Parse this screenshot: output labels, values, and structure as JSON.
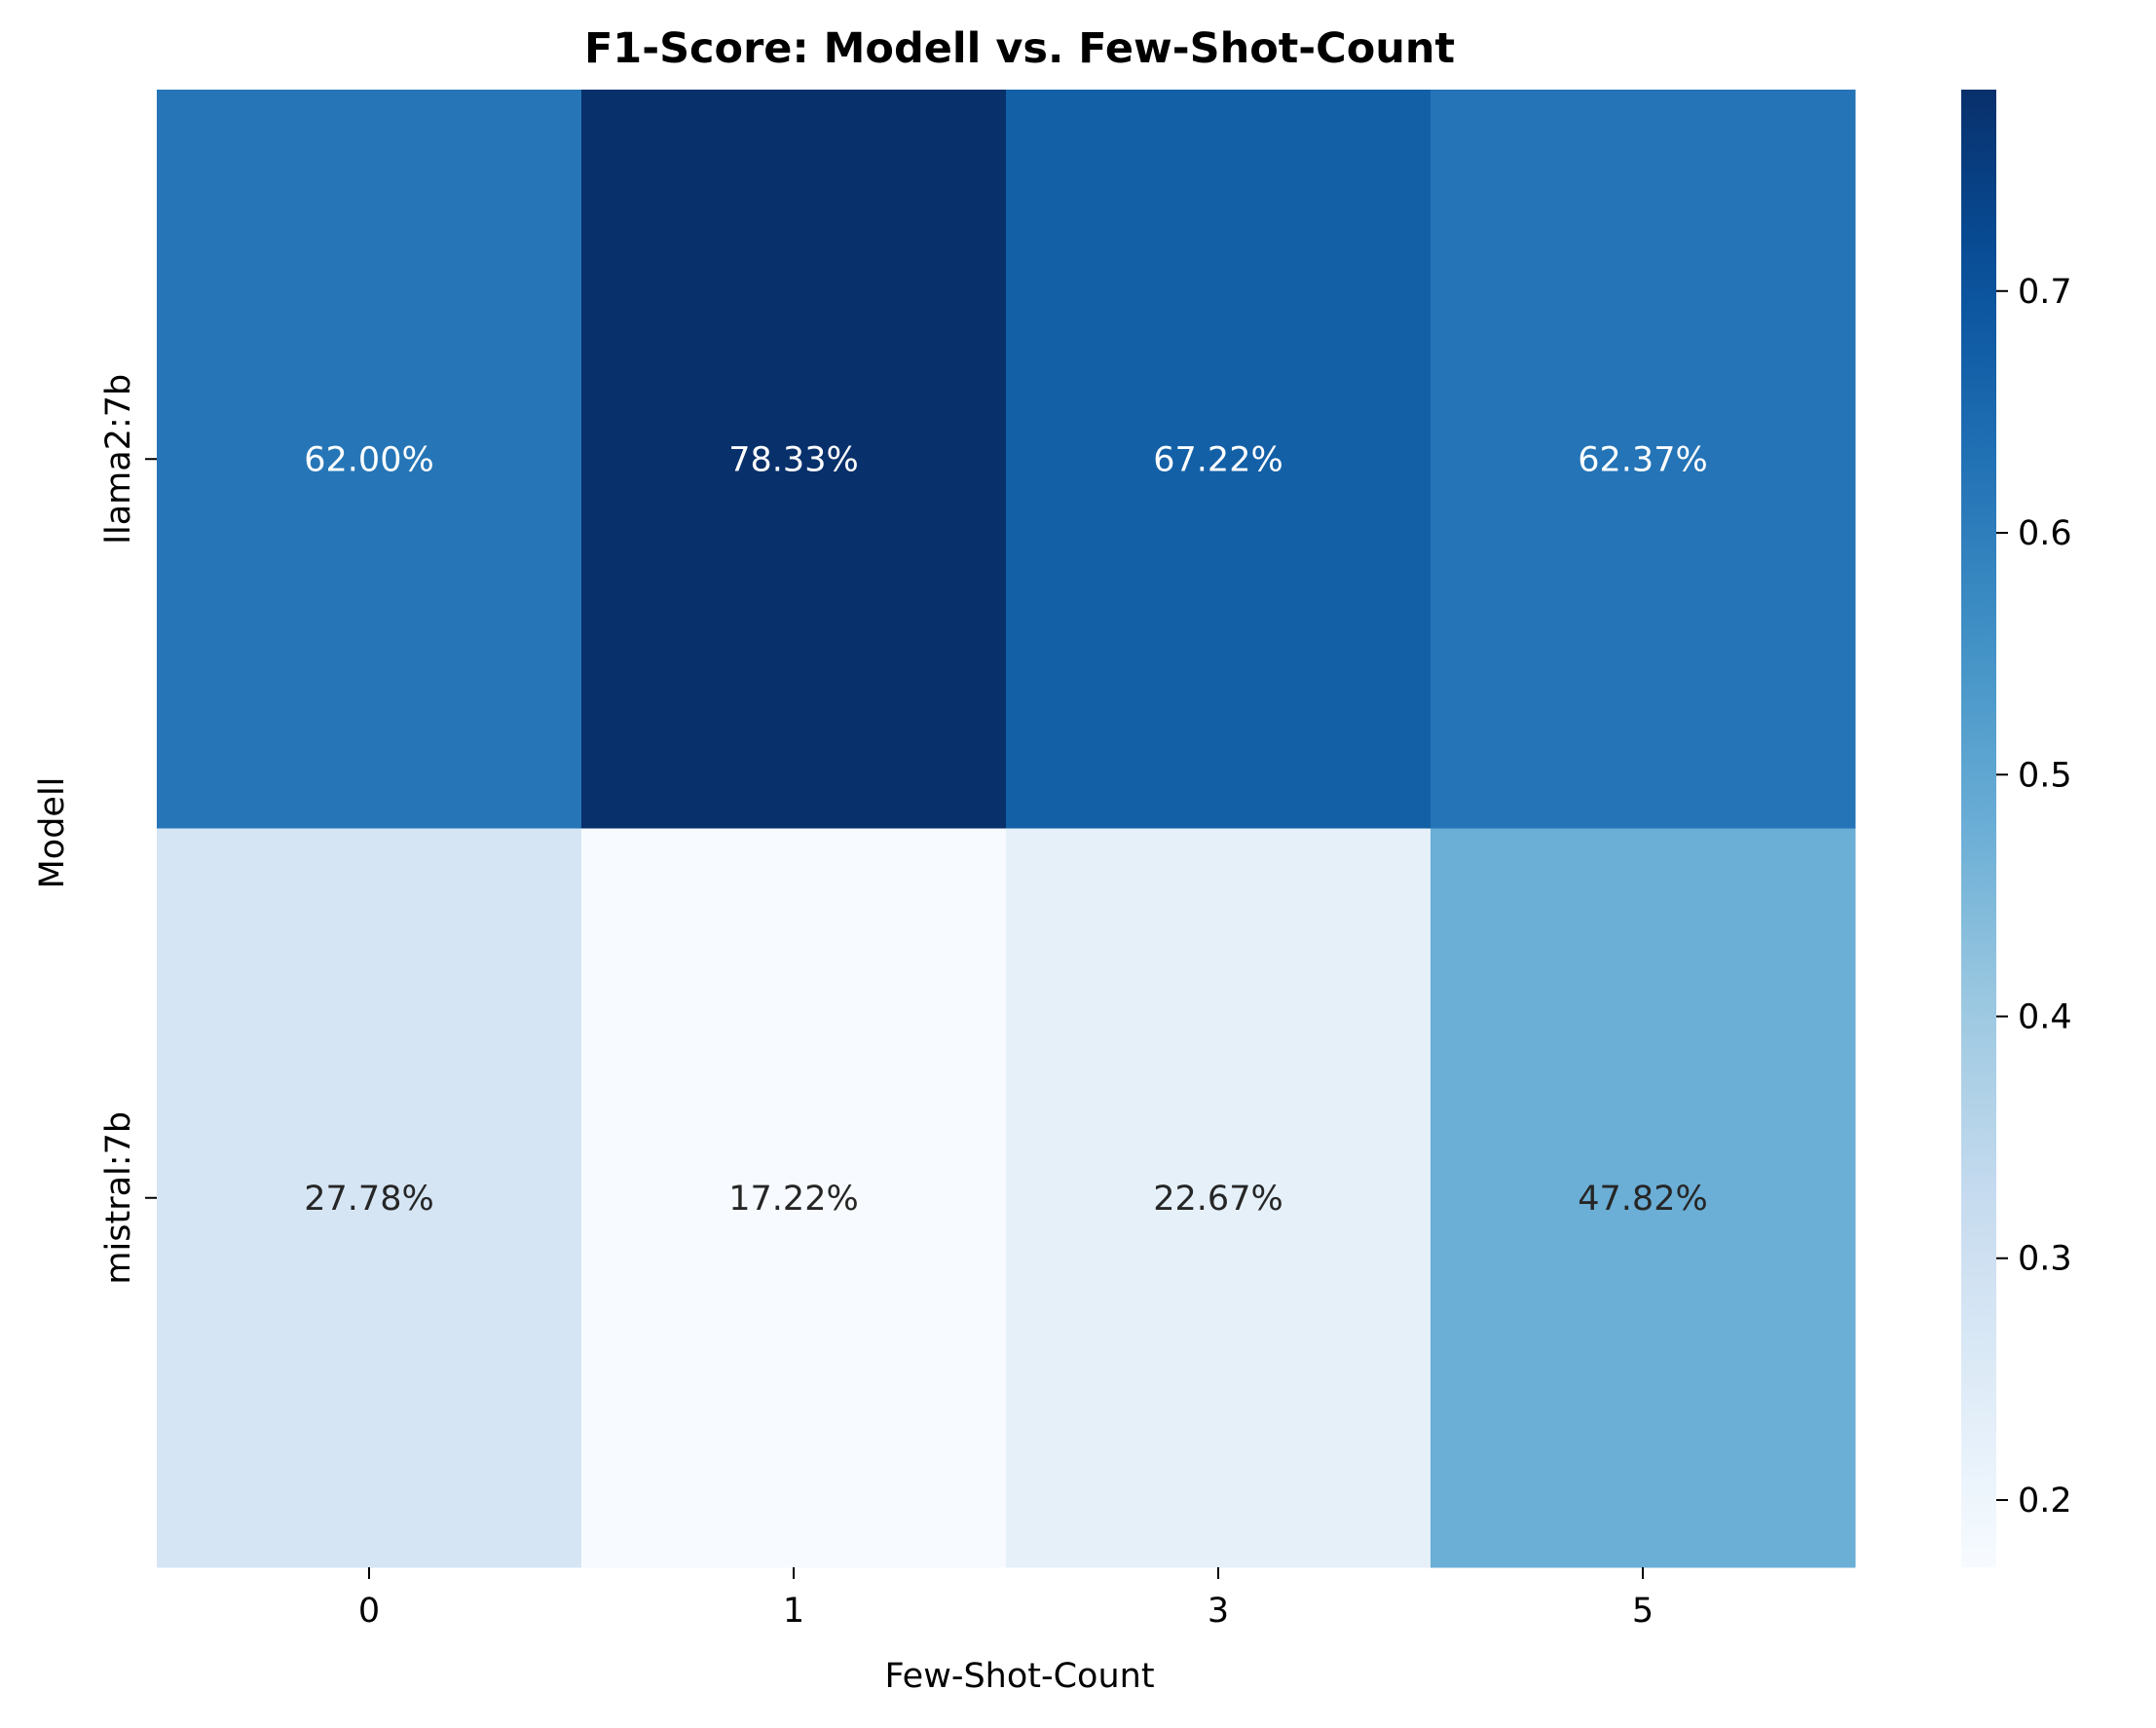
{
  "chart_data": {
    "type": "heatmap",
    "title": "F1-Score: Modell vs. Few-Shot-Count",
    "xlabel": "Few-Shot-Count",
    "ylabel": "Modell",
    "x_categories": [
      "0",
      "1",
      "3",
      "5"
    ],
    "y_categories": [
      "llama2:7b",
      "mistral:7b"
    ],
    "values": [
      [
        0.62,
        0.7833,
        0.6722,
        0.6237
      ],
      [
        0.2778,
        0.1722,
        0.2267,
        0.4782
      ]
    ],
    "cell_labels": [
      [
        "62.00%",
        "78.33%",
        "67.22%",
        "62.37%"
      ],
      [
        "27.78%",
        "17.22%",
        "22.67%",
        "47.82%"
      ]
    ],
    "colormap": "Blues",
    "color_range": [
      0.1722,
      0.7833
    ],
    "colorbar_ticks": [
      "0.2",
      "0.3",
      "0.4",
      "0.5",
      "0.6",
      "0.7"
    ],
    "colorbar_tick_values": [
      0.2,
      0.3,
      0.4,
      0.5,
      0.6,
      0.7
    ],
    "grid": false,
    "legend": "colorbar-right"
  }
}
